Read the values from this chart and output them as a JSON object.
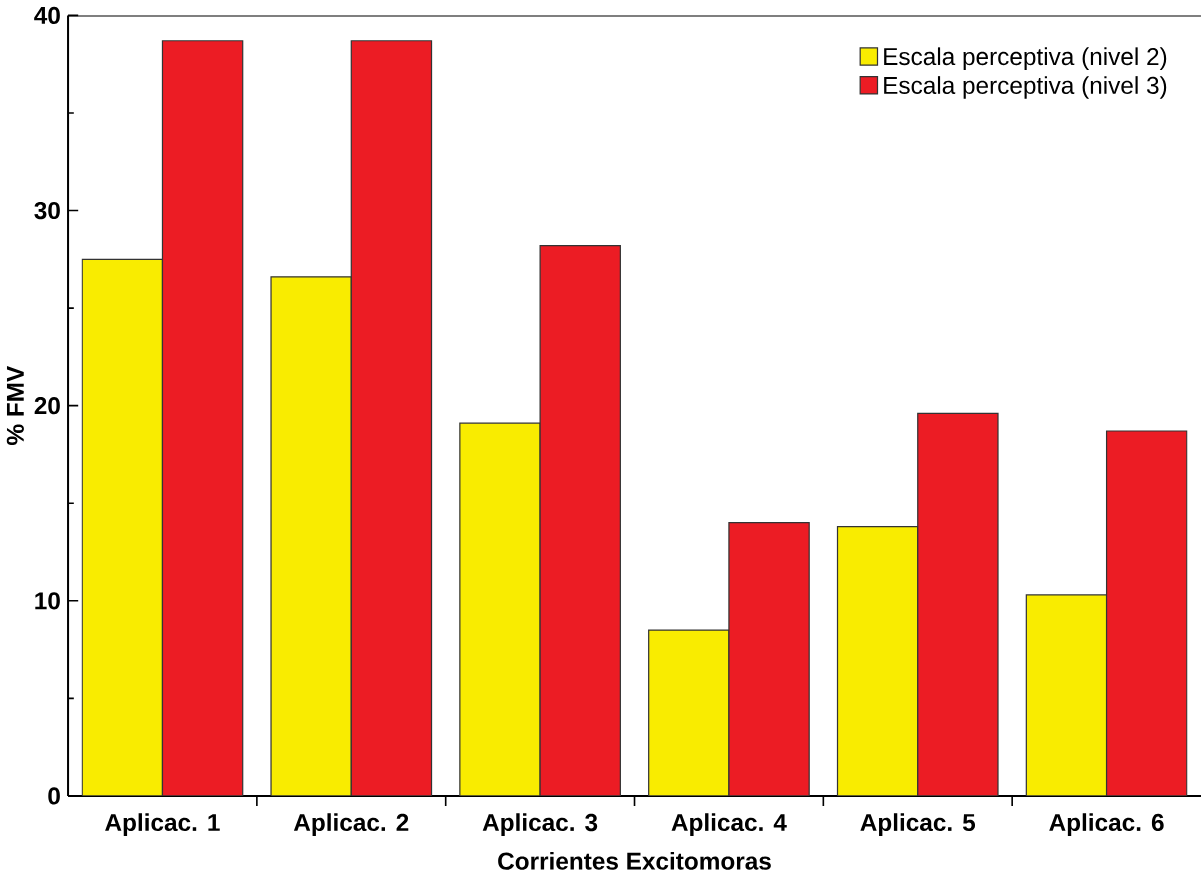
{
  "chart_data": {
    "type": "bar",
    "xlabel": "Corrientes Excitomoras",
    "ylabel": "% FMV",
    "categories": [
      "Aplicac. 1",
      "Aplicac. 2",
      "Aplicac. 3",
      "Aplicac. 4",
      "Aplicac. 5",
      "Aplicac. 6"
    ],
    "series": [
      {
        "name": "Escala perceptiva (nivel 2)",
        "color": "#f9ec00",
        "values": [
          27.5,
          26.6,
          19.1,
          8.5,
          13.8,
          10.3
        ]
      },
      {
        "name": "Escala perceptiva (nivel 3)",
        "color": "#ec1c24",
        "values": [
          38.7,
          38.7,
          28.2,
          14.0,
          19.6,
          18.7
        ]
      }
    ],
    "ylim": [
      0,
      40
    ],
    "yticks": [
      0,
      10,
      20,
      30,
      40
    ],
    "legend": "top right"
  }
}
